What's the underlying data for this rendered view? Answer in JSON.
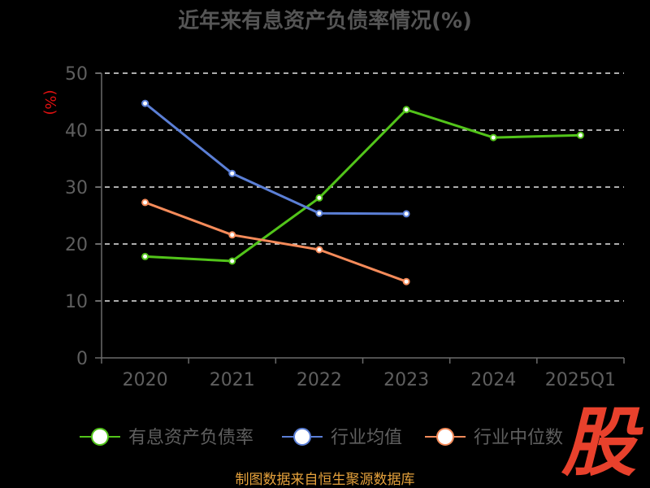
{
  "footer": "制图数据来自恒生聚源数据库",
  "logo": "股",
  "colors": {
    "background": "#000000",
    "axis": "#6a6a6a",
    "grid": "#e6e6e6",
    "ylabel": "#e01010",
    "footer": "#e6a23c",
    "logo": "#e8412c"
  },
  "chart_data": {
    "type": "line",
    "title": "近年来有息资产负债率情况(%)",
    "xlabel": "",
    "ylabel": "(%)",
    "categories": [
      "2020",
      "2021",
      "2022",
      "2023",
      "2024",
      "2025Q1"
    ],
    "ylim": [
      0,
      50
    ],
    "yticks": [
      0,
      10,
      20,
      30,
      40,
      50
    ],
    "grid": true,
    "legend": "bottom",
    "series": [
      {
        "name": "有息资产负债率",
        "color": "#52c41a",
        "values": [
          17.8,
          17.0,
          28.1,
          43.6,
          38.7,
          39.1
        ]
      },
      {
        "name": "行业均值",
        "color": "#5b7fd6",
        "values": [
          44.7,
          32.4,
          25.4,
          25.3,
          null,
          null
        ]
      },
      {
        "name": "行业中位数",
        "color": "#f58b5a",
        "values": [
          27.3,
          21.6,
          19.0,
          13.4,
          null,
          null
        ]
      }
    ]
  }
}
